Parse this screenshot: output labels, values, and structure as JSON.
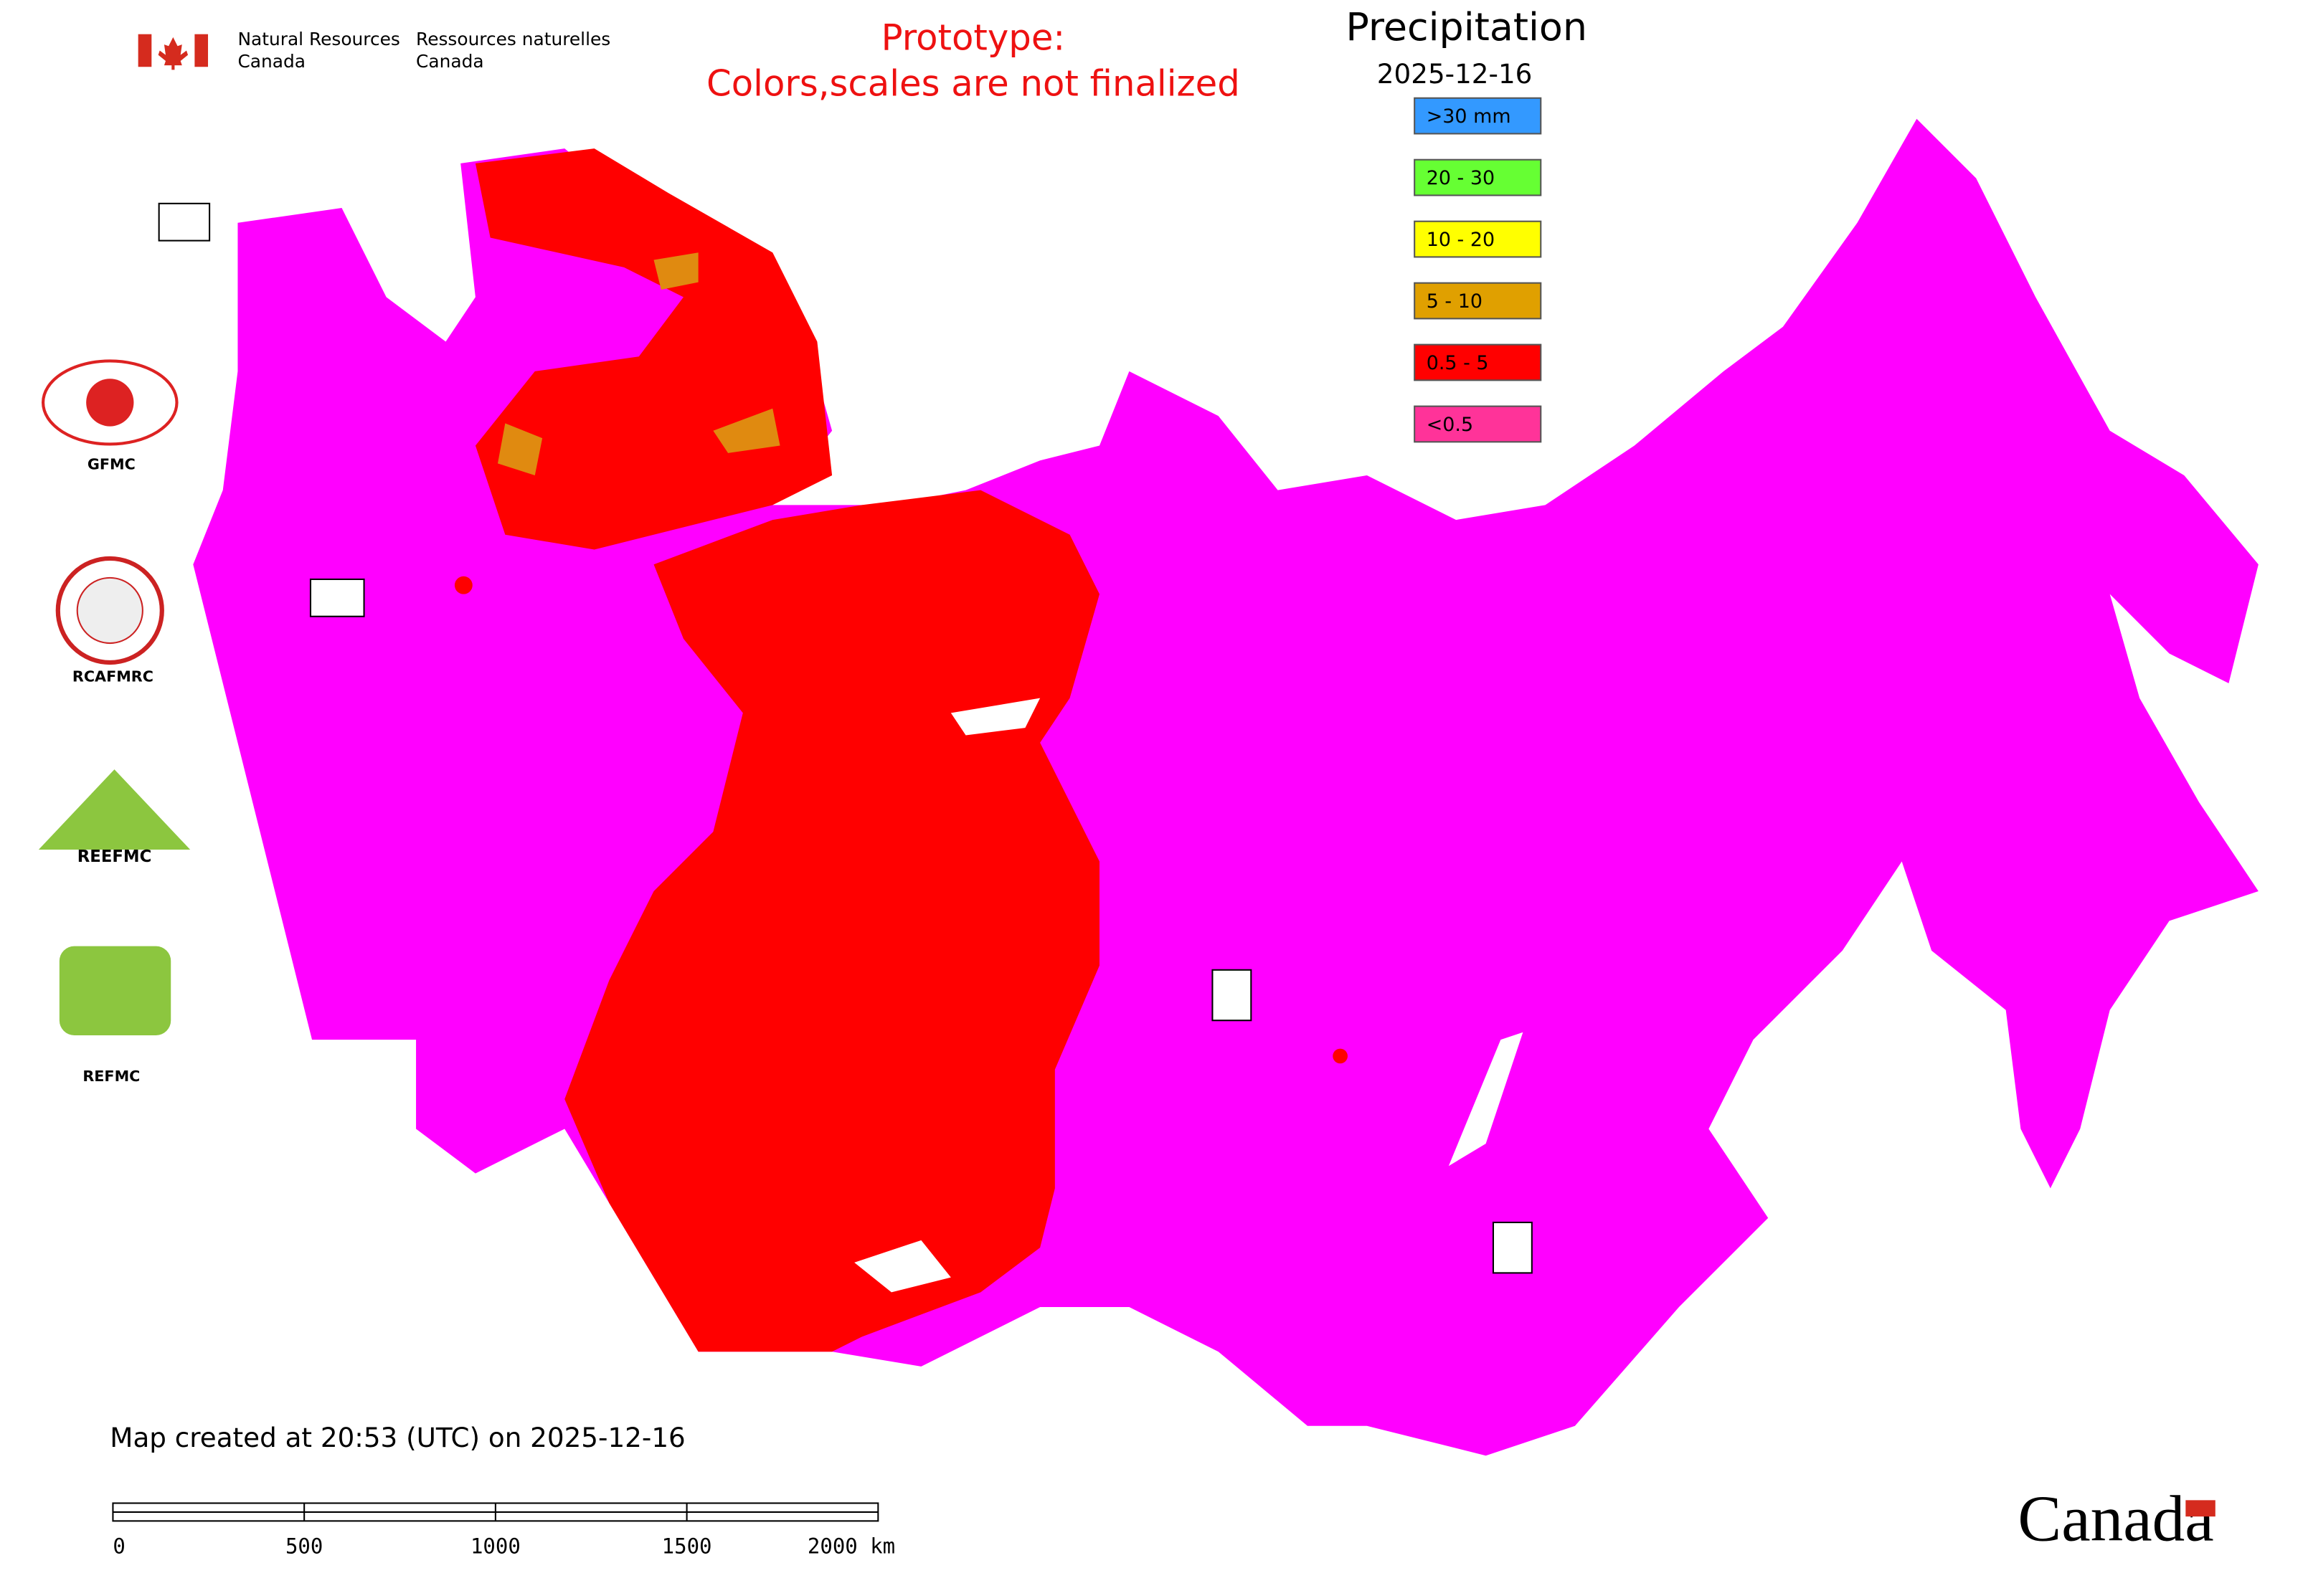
{
  "header": {
    "department_en": [
      "Natural Resources",
      "Canada"
    ],
    "department_fr": [
      "Ressources naturelles",
      "Canada"
    ],
    "notice": [
      "Prototype:",
      "Colors,scales are not finalized"
    ]
  },
  "legend": {
    "title": "Precipitation",
    "date": "2025-12-16",
    "items": [
      {
        "label": ">30 mm",
        "color": "#3399ff"
      },
      {
        "label": "20 - 30",
        "color": "#66ff33"
      },
      {
        "label": "10 - 20",
        "color": "#ffff00"
      },
      {
        "label": "5 - 10",
        "color": "#e0a000"
      },
      {
        "label": "0.5 - 5",
        "color": "#ff0000"
      },
      {
        "label": "<0.5",
        "color": "#ff3399"
      }
    ]
  },
  "logos": [
    "GFMC",
    "RCAFMRC",
    "REEFMC",
    "REFMC"
  ],
  "footer": {
    "created": "Map created at 20:53 (UTC) on 2025-12-16",
    "scale_labels": [
      "0",
      "500",
      "1000",
      "1500",
      "2000 km"
    ],
    "wordmark": "Canada"
  }
}
